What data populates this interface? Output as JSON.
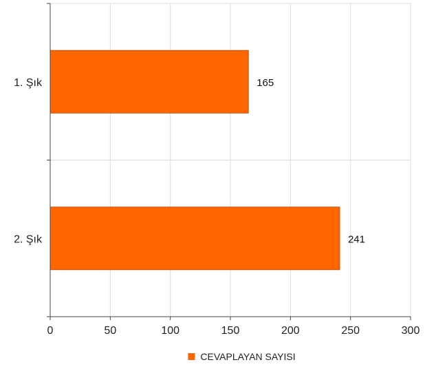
{
  "chart_data": {
    "type": "bar",
    "orientation": "horizontal",
    "categories": [
      "1. Şık",
      "2. Şık"
    ],
    "series": [
      {
        "name": "CEVAPLAYAN SAYISI",
        "values": [
          165,
          241
        ],
        "color": "#ff6600",
        "border_color": "#c85000"
      }
    ],
    "x_ticks": [
      "0",
      "50",
      "100",
      "150",
      "200",
      "250",
      "300"
    ],
    "xlim": [
      0,
      300
    ],
    "grid": true,
    "grid_color": "#dcdcdc",
    "axis_color": "#444444",
    "legend_position": "bottom",
    "title": "",
    "xlabel": "",
    "ylabel": ""
  }
}
